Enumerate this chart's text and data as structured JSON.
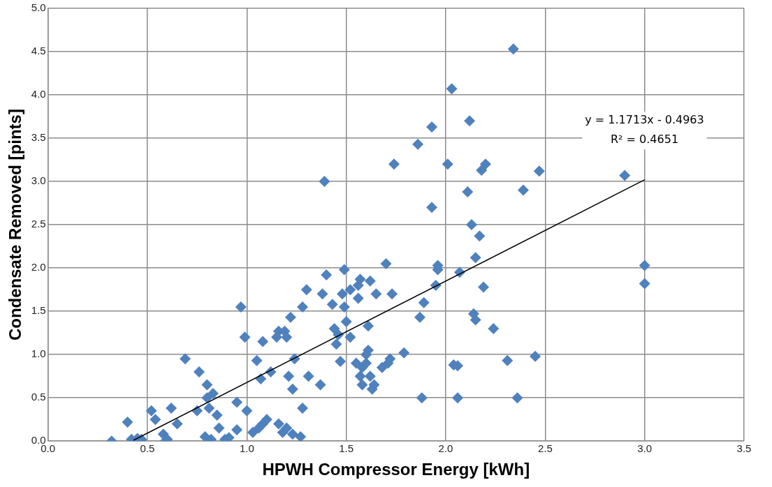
{
  "chart_data": {
    "type": "scatter",
    "xlabel": "HPWH Compressor Energy [kWh]",
    "ylabel": "Condensate Removed [pints]",
    "annotations": [
      "y = 1.1713x - 0.4963",
      "R² = 0.4651"
    ],
    "xlim": [
      0,
      3.5
    ],
    "xticks": [
      {
        "value": 0,
        "label": "0.0"
      },
      {
        "value": 0.5,
        "label": "0.5"
      },
      {
        "value": 1,
        "label": "1.0"
      },
      {
        "value": 1.5,
        "label": "1.5"
      },
      {
        "value": 2,
        "label": "2.0"
      },
      {
        "value": 2.5,
        "label": "2.5"
      },
      {
        "value": 3,
        "label": "3.0"
      },
      {
        "value": 3.5,
        "label": "3.5"
      }
    ],
    "ylim": [
      0,
      5
    ],
    "yticks": [
      {
        "value": 0,
        "label": "0.0"
      },
      {
        "value": 0.5,
        "label": "0.5"
      },
      {
        "value": 1,
        "label": "1.0"
      },
      {
        "value": 1.5,
        "label": "1.5"
      },
      {
        "value": 2,
        "label": "2.0"
      },
      {
        "value": 2.5,
        "label": "2.5"
      },
      {
        "value": 3,
        "label": "3.0"
      },
      {
        "value": 3.5,
        "label": "3.5"
      },
      {
        "value": 4,
        "label": "4.0"
      },
      {
        "value": 4.5,
        "label": "4.5"
      },
      {
        "value": 5,
        "label": "5.0"
      }
    ],
    "grid": true,
    "legend": false,
    "marker": "diamond",
    "series": [
      {
        "type": "scatter",
        "color": "#4f81bd",
        "x": [
          0.32,
          0.4,
          0.42,
          0.45,
          0.47,
          0.52,
          0.54,
          0.58,
          0.59,
          0.6,
          0.62,
          0.65,
          0.69,
          0.75,
          0.76,
          0.79,
          0.8,
          0.8,
          0.81,
          0.82,
          0.83,
          0.85,
          0.86,
          0.89,
          0.91,
          0.95,
          0.95,
          0.97,
          0.99,
          1.0,
          1.03,
          1.05,
          1.06,
          1.07,
          1.08,
          1.08,
          1.1,
          1.12,
          1.15,
          1.16,
          1.16,
          1.18,
          1.19,
          1.2,
          1.2,
          1.21,
          1.22,
          1.23,
          1.24,
          1.23,
          1.27,
          1.28,
          1.28,
          1.3,
          1.31,
          1.37,
          1.38,
          1.39,
          1.4,
          1.43,
          1.44,
          1.45,
          1.46,
          1.47,
          1.48,
          1.49,
          1.49,
          1.5,
          1.52,
          1.52,
          1.55,
          1.56,
          1.56,
          1.57,
          1.57,
          1.58,
          1.58,
          1.6,
          1.6,
          1.61,
          1.61,
          1.62,
          1.62,
          1.63,
          1.64,
          1.65,
          1.68,
          1.7,
          1.71,
          1.72,
          1.73,
          1.74,
          1.79,
          1.86,
          1.87,
          1.88,
          1.89,
          1.93,
          1.93,
          1.95,
          1.96,
          1.96,
          2.01,
          2.03,
          2.04,
          2.06,
          2.06,
          2.07,
          2.11,
          2.12,
          2.13,
          2.14,
          2.15,
          2.15,
          2.17,
          2.18,
          2.2,
          2.19,
          2.24,
          2.31,
          2.34,
          2.36,
          2.39,
          2.45,
          2.47,
          2.9,
          3.0,
          3.0
        ],
        "values": [
          0.0,
          0.22,
          0.02,
          0.03,
          0.02,
          0.35,
          0.25,
          0.08,
          0.0,
          0.02,
          0.38,
          0.2,
          0.95,
          0.35,
          0.8,
          0.05,
          0.65,
          0.5,
          0.38,
          0.02,
          0.55,
          0.3,
          0.15,
          0.02,
          0.04,
          0.45,
          0.13,
          1.55,
          1.2,
          0.35,
          0.1,
          0.93,
          0.15,
          0.72,
          0.2,
          1.15,
          0.25,
          0.8,
          1.2,
          1.27,
          0.2,
          0.1,
          1.27,
          1.2,
          0.15,
          0.75,
          1.43,
          0.6,
          0.95,
          0.08,
          0.05,
          1.55,
          0.38,
          1.75,
          0.75,
          0.65,
          1.7,
          3.0,
          1.92,
          1.58,
          1.3,
          1.12,
          1.23,
          0.92,
          1.7,
          1.98,
          1.55,
          1.38,
          1.75,
          1.2,
          0.9,
          1.8,
          1.65,
          1.87,
          0.75,
          0.85,
          0.65,
          1.0,
          0.9,
          1.05,
          1.33,
          1.85,
          0.75,
          0.6,
          0.65,
          1.7,
          0.85,
          2.05,
          0.9,
          0.95,
          1.7,
          3.2,
          1.02,
          3.43,
          1.43,
          0.5,
          1.6,
          3.63,
          2.7,
          1.8,
          2.03,
          1.98,
          3.2,
          4.07,
          0.88,
          0.87,
          0.5,
          1.95,
          2.88,
          3.7,
          2.5,
          1.47,
          2.12,
          1.4,
          2.37,
          3.13,
          3.2,
          1.78,
          1.3,
          0.93,
          4.53,
          0.5,
          2.9,
          0.98,
          3.12,
          3.07,
          2.03,
          1.82
        ]
      },
      {
        "type": "line",
        "color": "#000000",
        "marker": "none",
        "x": [
          0.43,
          3.0
        ],
        "values": [
          0.01,
          3.02
        ]
      }
    ]
  }
}
